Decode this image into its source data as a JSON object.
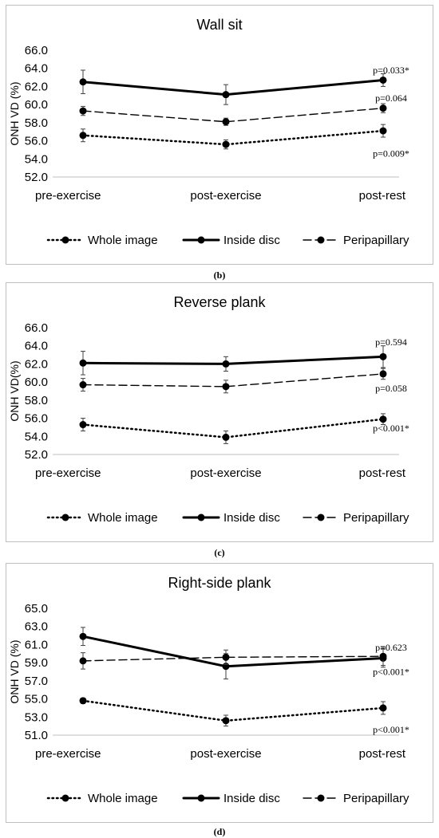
{
  "chart_data": [
    {
      "type": "line",
      "title": "Wall sit",
      "ylabel": "ONH VD (%)",
      "caption": "(b)",
      "categories": [
        "pre-exercise",
        "post-exercise",
        "post-rest"
      ],
      "ylim": [
        52.0,
        66.0
      ],
      "yticks": [
        "52.0",
        "54.0",
        "56.0",
        "58.0",
        "60.0",
        "62.0",
        "64.0",
        "66.0"
      ],
      "series": [
        {
          "name": "Whole image",
          "style": "dotted",
          "values": [
            56.6,
            55.6,
            57.1
          ],
          "errors": [
            0.7,
            0.5,
            0.7
          ]
        },
        {
          "name": "Inside disc",
          "style": "solid",
          "values": [
            62.5,
            61.1,
            62.7
          ],
          "errors": [
            1.3,
            1.1,
            0.7
          ]
        },
        {
          "name": "Peripapillary",
          "style": "dashed",
          "values": [
            59.3,
            58.1,
            59.6
          ],
          "errors": [
            0.5,
            0.4,
            0.5
          ]
        }
      ],
      "annotations": [
        {
          "text": "p=0.033*",
          "x": "post-rest",
          "y": 63.8
        },
        {
          "text": "p=0.064",
          "x": "post-rest",
          "y": 60.7
        },
        {
          "text": "p=0.009*",
          "x": "post-rest",
          "y": 54.6
        }
      ],
      "legend_position": "bottom"
    },
    {
      "type": "line",
      "title": "Reverse plank",
      "ylabel": "ONH VD(%)",
      "caption": "(c)",
      "categories": [
        "pre-exercise",
        "post-exercise",
        "post-rest"
      ],
      "ylim": [
        52.0,
        66.0
      ],
      "yticks": [
        "52.0",
        "54.0",
        "56.0",
        "58.0",
        "60.0",
        "62.0",
        "64.0",
        "66.0"
      ],
      "series": [
        {
          "name": "Whole image",
          "style": "dotted",
          "values": [
            55.3,
            53.9,
            55.9
          ],
          "errors": [
            0.7,
            0.7,
            0.6
          ]
        },
        {
          "name": "Inside disc",
          "style": "solid",
          "values": [
            62.1,
            62.0,
            62.8
          ],
          "errors": [
            1.3,
            0.8,
            1.2
          ]
        },
        {
          "name": "Peripapillary",
          "style": "dashed",
          "values": [
            59.7,
            59.5,
            60.9
          ],
          "errors": [
            0.7,
            0.7,
            0.6
          ]
        }
      ],
      "annotations": [
        {
          "text": "p=0.594",
          "x": "post-rest",
          "y": 64.4
        },
        {
          "text": "p=0.058",
          "x": "post-rest",
          "y": 59.3
        },
        {
          "text": "p<0.001*",
          "x": "post-rest",
          "y": 54.9
        }
      ],
      "legend_position": "bottom"
    },
    {
      "type": "line",
      "title": "Right-side plank",
      "ylabel": "ONH VD (%)",
      "caption": "(d)",
      "categories": [
        "pre-exercise",
        "post-exercise",
        "post-rest"
      ],
      "ylim": [
        51.0,
        65.0
      ],
      "yticks": [
        "51.0",
        "53.0",
        "55.0",
        "57.0",
        "59.0",
        "61.0",
        "63.0",
        "65.0"
      ],
      "series": [
        {
          "name": "Whole image",
          "style": "dotted",
          "values": [
            54.8,
            52.6,
            54.0
          ],
          "errors": [
            0.3,
            0.6,
            0.7
          ]
        },
        {
          "name": "Inside disc",
          "style": "solid",
          "values": [
            61.9,
            58.6,
            59.5
          ],
          "errors": [
            1.0,
            1.4,
            1.0
          ]
        },
        {
          "name": "Peripapillary",
          "style": "dashed",
          "values": [
            59.2,
            59.6,
            59.7
          ],
          "errors": [
            0.9,
            0.8,
            1.0
          ]
        }
      ],
      "annotations": [
        {
          "text": "p=0.623",
          "x": "post-rest",
          "y": 60.7
        },
        {
          "text": "p<0.001*",
          "x": "post-rest",
          "y": 58.0
        },
        {
          "text": "p<0.001*",
          "x": "post-rest",
          "y": 51.6
        }
      ],
      "legend_position": "bottom"
    }
  ]
}
